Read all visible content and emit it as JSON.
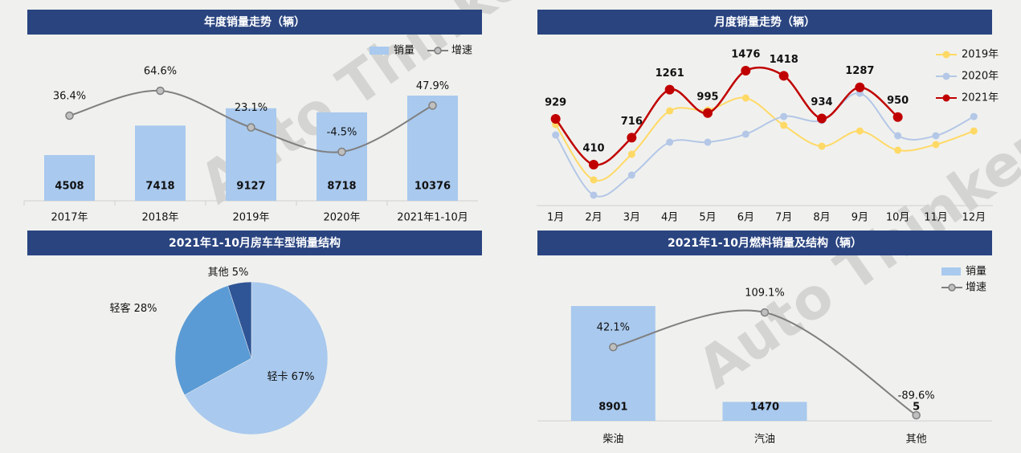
{
  "watermark": "Auto Thinker",
  "chart_data": [
    {
      "type": "combo",
      "title": "年度销量走势（辆）",
      "categories": [
        "2017年",
        "2018年",
        "2019年",
        "2020年",
        "2021年1-10月"
      ],
      "series": [
        {
          "name": "销量",
          "kind": "bar",
          "color": "#a9c9ee",
          "values": [
            4508,
            7418,
            9127,
            8718,
            10376
          ]
        },
        {
          "name": "增速",
          "kind": "line",
          "color": "#7f7f7f",
          "values": [
            36.4,
            64.6,
            23.1,
            -4.5,
            47.9
          ],
          "value_labels": [
            "36.4%",
            "64.6%",
            "23.1%",
            "-4.5%",
            "47.9%"
          ]
        }
      ],
      "legend": "top-right"
    },
    {
      "type": "line",
      "title": "月度销量走势（辆）",
      "categories": [
        "1月",
        "2月",
        "3月",
        "4月",
        "5月",
        "6月",
        "7月",
        "8月",
        "9月",
        "10月",
        "11月",
        "12月"
      ],
      "series": [
        {
          "name": "2019年",
          "color": "#ffd966",
          "values": [
            865,
            237,
            528,
            1020,
            1029,
            1166,
            856,
            619,
            792,
            574,
            638,
            792
          ]
        },
        {
          "name": "2020年",
          "color": "#b4c7e7",
          "values": [
            747,
            64,
            291,
            665,
            665,
            756,
            956,
            911,
            1220,
            738,
            738,
            956
          ]
        },
        {
          "name": "2021年",
          "color": "#c00000",
          "labeled": true,
          "values": [
            929,
            410,
            716,
            1261,
            995,
            1476,
            1418,
            934,
            1287,
            950,
            null,
            null
          ]
        }
      ],
      "legend": "right"
    },
    {
      "type": "pie",
      "title": "2021年1-10月房车车型销量结构",
      "categories": [
        "轻卡",
        "轻客",
        "其他"
      ],
      "values": [
        67,
        28,
        5
      ],
      "value_labels": [
        "67%",
        "28%",
        "5%"
      ],
      "colors": [
        "#a9c9ee",
        "#5b9bd5",
        "#2f5597"
      ]
    },
    {
      "type": "combo",
      "title": "2021年1-10月燃料销量及结构（辆）",
      "categories": [
        "柴油",
        "汽油",
        "其他"
      ],
      "series": [
        {
          "name": "销量",
          "kind": "bar",
          "color": "#a9c9ee",
          "values": [
            8901,
            1470,
            5
          ]
        },
        {
          "name": "增速",
          "kind": "line",
          "color": "#7f7f7f",
          "values": [
            42.1,
            109.1,
            -89.6
          ],
          "value_labels": [
            "42.1%",
            "109.1%",
            "-89.6%"
          ]
        }
      ],
      "legend": "top-right"
    }
  ]
}
